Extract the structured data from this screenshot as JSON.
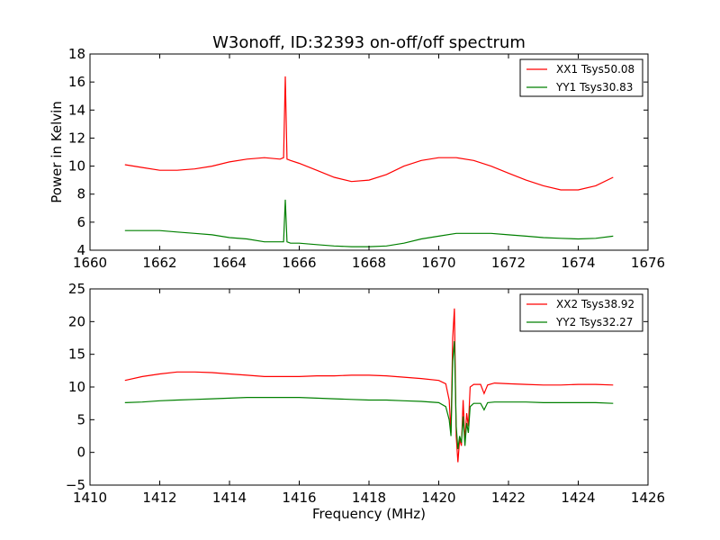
{
  "figure": {
    "title": "W3onoff, ID:32393 on-off/off spectrum",
    "xlabel": "Frequency (MHz)",
    "ylabel_top": "Power in Kelvin"
  },
  "chart_data": [
    {
      "type": "line",
      "title": "W3onoff, ID:32393 on-off/off spectrum",
      "xlabel": "",
      "ylabel": "Power in Kelvin",
      "xlim": [
        1660,
        1676
      ],
      "ylim": [
        4,
        18
      ],
      "xticks": [
        1660,
        1662,
        1664,
        1666,
        1668,
        1670,
        1672,
        1674,
        1676
      ],
      "yticks": [
        4,
        6,
        8,
        10,
        12,
        14,
        16,
        18
      ],
      "grid": false,
      "legend_position": "top-right",
      "series": [
        {
          "name": "XX1 Tsys50.08",
          "color": "#ff0000",
          "x": [
            1661,
            1661.5,
            1662,
            1662.5,
            1663,
            1663.5,
            1664,
            1664.5,
            1665,
            1665.45,
            1665.55,
            1665.6,
            1665.65,
            1665.75,
            1666,
            1666.5,
            1667,
            1667.5,
            1668,
            1668.5,
            1669,
            1669.5,
            1670,
            1670.5,
            1671,
            1671.5,
            1672,
            1672.5,
            1673,
            1673.5,
            1674,
            1674.5,
            1675
          ],
          "y": [
            10.1,
            9.9,
            9.7,
            9.7,
            9.8,
            10.0,
            10.3,
            10.5,
            10.6,
            10.5,
            10.6,
            16.4,
            10.5,
            10.4,
            10.2,
            9.7,
            9.2,
            8.9,
            9.0,
            9.4,
            10.0,
            10.4,
            10.6,
            10.6,
            10.4,
            10.0,
            9.5,
            9.0,
            8.6,
            8.3,
            8.3,
            8.6,
            9.2
          ]
        },
        {
          "name": "YY1 Tsys30.83",
          "color": "#008000",
          "x": [
            1661,
            1661.5,
            1662,
            1662.5,
            1663,
            1663.5,
            1664,
            1664.5,
            1665,
            1665.45,
            1665.55,
            1665.6,
            1665.65,
            1665.75,
            1666,
            1666.5,
            1667,
            1667.5,
            1668,
            1668.5,
            1669,
            1669.5,
            1670,
            1670.5,
            1671,
            1671.5,
            1672,
            1672.5,
            1673,
            1673.5,
            1674,
            1674.5,
            1675
          ],
          "y": [
            5.4,
            5.4,
            5.4,
            5.3,
            5.2,
            5.1,
            4.9,
            4.8,
            4.6,
            4.6,
            4.6,
            7.6,
            4.6,
            4.5,
            4.5,
            4.4,
            4.3,
            4.25,
            4.25,
            4.3,
            4.5,
            4.8,
            5.0,
            5.2,
            5.2,
            5.2,
            5.1,
            5.0,
            4.9,
            4.85,
            4.8,
            4.85,
            5.0
          ]
        }
      ]
    },
    {
      "type": "line",
      "title": "",
      "xlabel": "Frequency (MHz)",
      "ylabel": "",
      "xlim": [
        1410,
        1426
      ],
      "ylim": [
        -5,
        25
      ],
      "xticks": [
        1410,
        1412,
        1414,
        1416,
        1418,
        1420,
        1422,
        1424,
        1426
      ],
      "yticks": [
        -5,
        0,
        5,
        10,
        15,
        20,
        25
      ],
      "ytick_labels": [
        "−5",
        "0",
        "5",
        "10",
        "15",
        "20",
        "25"
      ],
      "grid": false,
      "legend_position": "top-right",
      "series": [
        {
          "name": "XX2 Tsys38.92",
          "color": "#ff0000",
          "x": [
            1411,
            1411.5,
            1412,
            1412.5,
            1413,
            1413.5,
            1414,
            1414.5,
            1415,
            1415.5,
            1416,
            1416.5,
            1417,
            1417.5,
            1418,
            1418.5,
            1419,
            1419.5,
            1420,
            1420.2,
            1420.3,
            1420.35,
            1420.4,
            1420.45,
            1420.5,
            1420.55,
            1420.6,
            1420.65,
            1420.7,
            1420.75,
            1420.8,
            1420.85,
            1420.9,
            1421.0,
            1421.2,
            1421.3,
            1421.4,
            1421.6,
            1422,
            1422.5,
            1423,
            1423.5,
            1424,
            1424.5,
            1425
          ],
          "y": [
            11.0,
            11.6,
            12.0,
            12.3,
            12.3,
            12.2,
            12.0,
            11.8,
            11.6,
            11.6,
            11.6,
            11.7,
            11.7,
            11.8,
            11.8,
            11.7,
            11.5,
            11.3,
            11.0,
            10.5,
            8.0,
            3.0,
            17.5,
            22.0,
            2.5,
            -1.5,
            2.0,
            1.0,
            8.0,
            1.5,
            6.0,
            4.0,
            10.0,
            10.4,
            10.4,
            9.0,
            10.3,
            10.6,
            10.5,
            10.4,
            10.3,
            10.3,
            10.4,
            10.4,
            10.3
          ]
        },
        {
          "name": "YY2 Tsys32.27",
          "color": "#008000",
          "x": [
            1411,
            1411.5,
            1412,
            1412.5,
            1413,
            1413.5,
            1414,
            1414.5,
            1415,
            1415.5,
            1416,
            1416.5,
            1417,
            1417.5,
            1418,
            1418.5,
            1419,
            1419.5,
            1420,
            1420.2,
            1420.3,
            1420.35,
            1420.4,
            1420.45,
            1420.5,
            1420.55,
            1420.6,
            1420.65,
            1420.7,
            1420.75,
            1420.8,
            1420.85,
            1420.9,
            1421.0,
            1421.2,
            1421.3,
            1421.4,
            1421.6,
            1422,
            1422.5,
            1423,
            1423.5,
            1424,
            1424.5,
            1425
          ],
          "y": [
            7.6,
            7.7,
            7.9,
            8.0,
            8.1,
            8.2,
            8.3,
            8.4,
            8.4,
            8.4,
            8.4,
            8.3,
            8.2,
            8.1,
            8.0,
            8.0,
            7.9,
            7.8,
            7.6,
            7.0,
            5.0,
            2.5,
            14.0,
            17.0,
            4.0,
            0.5,
            2.5,
            1.5,
            5.5,
            1.0,
            4.5,
            3.0,
            7.0,
            7.5,
            7.5,
            6.5,
            7.6,
            7.7,
            7.7,
            7.7,
            7.6,
            7.6,
            7.6,
            7.6,
            7.5
          ]
        }
      ]
    }
  ]
}
